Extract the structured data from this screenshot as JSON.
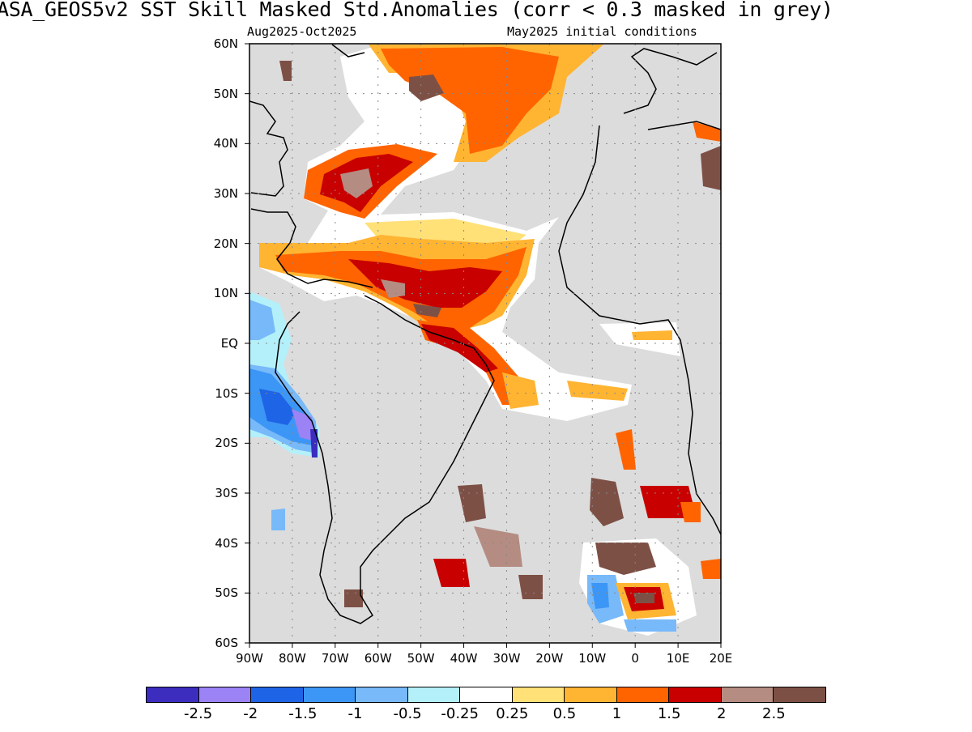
{
  "title": "ASA_GEOS5v2   SST Skill Masked Std.Anomalies (corr < 0.3 masked in grey)",
  "subtitle_left": "Aug2025-Oct2025",
  "subtitle_right": "May2025 initial conditions",
  "map": {
    "region": "Atlantic Ocean",
    "lon_range": [
      -90,
      20
    ],
    "lat_range": [
      -60,
      60
    ],
    "masked_color": "#dcdcdc",
    "ocean_neutral_color": "#ffffff",
    "lat_labels": [
      "60N",
      "50N",
      "40N",
      "30N",
      "20N",
      "10N",
      "EQ",
      "10S",
      "20S",
      "30S",
      "40S",
      "50S",
      "60S"
    ],
    "lon_labels": [
      "90W",
      "80W",
      "70W",
      "60W",
      "50W",
      "40W",
      "30W",
      "20W",
      "10W",
      "0",
      "10E",
      "20E"
    ]
  },
  "colorbar": {
    "colors": [
      "#3c2dbe",
      "#9b82f5",
      "#1e64e6",
      "#3c96f5",
      "#78b9fa",
      "#b4f0fa",
      "#ffffff",
      "#ffe178",
      "#ffb432",
      "#ff6400",
      "#c80000",
      "#b48c82",
      "#7d5046"
    ],
    "labels": [
      "-2.5",
      "-2",
      "-1.5",
      "-1",
      "-0.5",
      "-0.25",
      "0.25",
      "0.5",
      "1",
      "1.5",
      "2",
      "2.5"
    ]
  }
}
